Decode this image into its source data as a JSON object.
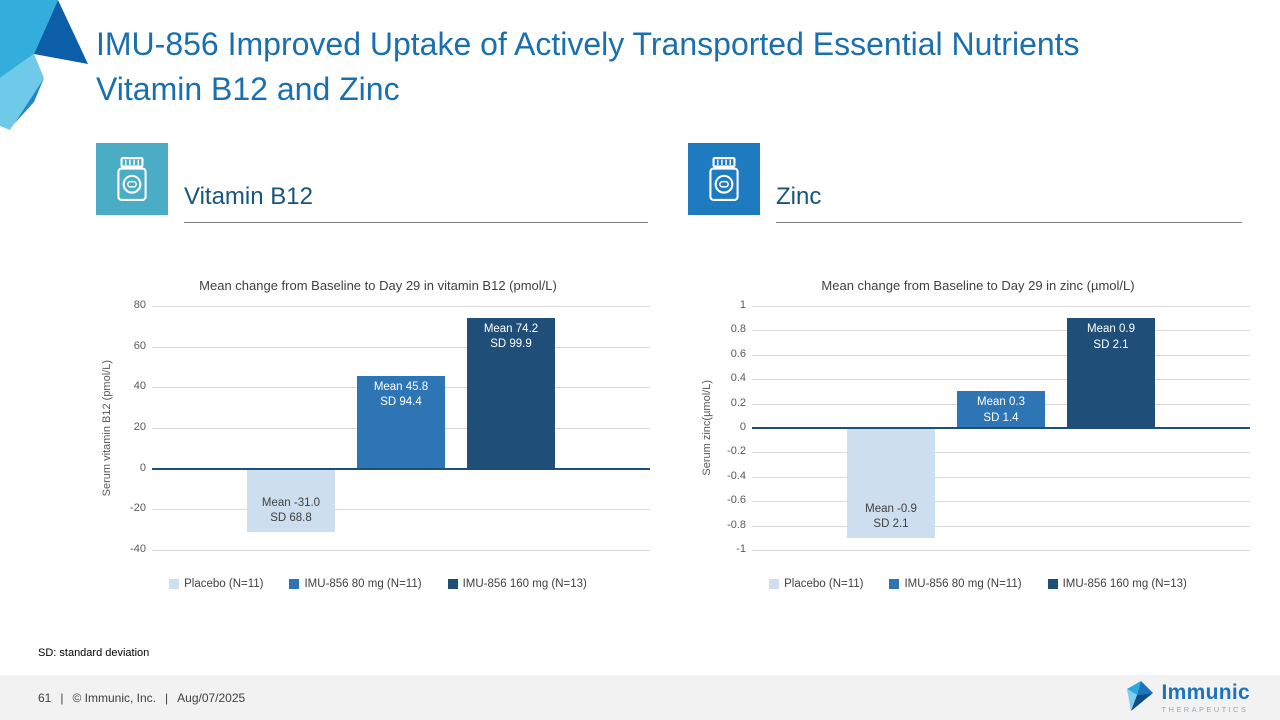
{
  "slide": {
    "title": "IMU-856 Improved Uptake of Actively Transported Essential Nutrients Vitamin B12 and Zinc",
    "footnote": "SD: standard deviation",
    "footer": {
      "page": "61",
      "separator": "|",
      "copyright": "© Immunic, Inc.",
      "date": "Aug/07/2025"
    },
    "logo": {
      "name": "Immunic",
      "sub": "THERAPEUTICS"
    }
  },
  "sections": [
    {
      "title": "Vitamin B12",
      "icon": "pill-bottle-icon",
      "icon_color": "#4BACC6"
    },
    {
      "title": "Zinc",
      "icon": "pill-bottle-icon",
      "icon_color": "#1F7BBF"
    }
  ],
  "chart_data": [
    {
      "type": "bar",
      "title": "Mean change from Baseline to Day 29 in vitamin B12 (pmol/L)",
      "ylabel": "Serum vitamin B12 (pmol/L)",
      "ylim": [
        -40,
        80
      ],
      "yticks": [
        "80",
        "60",
        "40",
        "20",
        "0",
        "-20",
        "-40"
      ],
      "grid": true,
      "legend_position": "bottom",
      "categories": [
        "Placebo (N=11)",
        "IMU-856 80 mg (N=11)",
        "IMU-856 160 mg (N=13)"
      ],
      "values": [
        -31.0,
        45.8,
        74.2
      ],
      "sd": [
        68.8,
        94.4,
        99.9
      ],
      "bar_labels": [
        "Mean -31.0\nSD 68.8",
        "Mean 45.8\nSD 94.4",
        "Mean 74.2\nSD 99.9"
      ],
      "colors": [
        "#CDDFEF",
        "#2E75B6",
        "#1F4E79"
      ],
      "label_colors": [
        "#404040",
        "#FFFFFF",
        "#FFFFFF"
      ],
      "legend": [
        "Placebo (N=11)",
        "IMU-856 80 mg (N=11)",
        "IMU-856 160 mg (N=13)"
      ]
    },
    {
      "type": "bar",
      "title": "Mean change from Baseline to Day 29 in zinc (µmol/L)",
      "ylabel": "Serum zinc(µmol/L)",
      "ylim": [
        -1,
        1
      ],
      "yticks": [
        "1",
        "0.8",
        "0.6",
        "0.4",
        "0.2",
        "0",
        "-0.2",
        "-0.4",
        "-0.6",
        "-0.8",
        "-1"
      ],
      "grid": true,
      "legend_position": "bottom",
      "categories": [
        "Placebo (N=11)",
        "IMU-856 80 mg (N=11)",
        "IMU-856 160 mg (N=13)"
      ],
      "values": [
        -0.9,
        0.3,
        0.9
      ],
      "sd": [
        2.1,
        1.4,
        2.1
      ],
      "bar_labels": [
        "Mean -0.9\nSD 2.1",
        "Mean 0.3\nSD 1.4",
        "Mean 0.9\nSD 2.1"
      ],
      "colors": [
        "#CDDFEF",
        "#2E75B6",
        "#1F4E79"
      ],
      "label_colors": [
        "#404040",
        "#FFFFFF",
        "#FFFFFF"
      ],
      "legend": [
        "Placebo (N=11)",
        "IMU-856 80 mg (N=11)",
        "IMU-856 160 mg (N=13)"
      ]
    }
  ]
}
